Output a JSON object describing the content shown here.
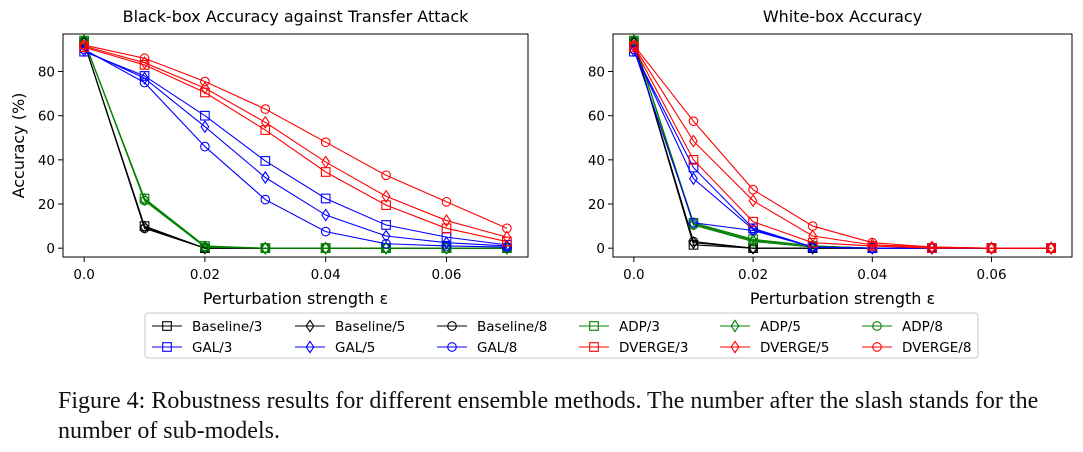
{
  "figure": {
    "caption_label": "Figure 4:",
    "caption_text": "Robustness results for different ensemble methods. The number after the slash stands for the number of sub-models."
  },
  "colors": {
    "Baseline": "#000000",
    "GAL": "#0000ff",
    "ADP": "#008000",
    "DVERGE": "#ff0000"
  },
  "legend": {
    "placement": "bottom-center",
    "entries": [
      {
        "name": "Baseline/3",
        "family": "Baseline",
        "marker": "square"
      },
      {
        "name": "Baseline/5",
        "family": "Baseline",
        "marker": "diamond"
      },
      {
        "name": "Baseline/8",
        "family": "Baseline",
        "marker": "circle"
      },
      {
        "name": "ADP/3",
        "family": "ADP",
        "marker": "square"
      },
      {
        "name": "ADP/5",
        "family": "ADP",
        "marker": "diamond"
      },
      {
        "name": "ADP/8",
        "family": "ADP",
        "marker": "circle"
      },
      {
        "name": "GAL/3",
        "family": "GAL",
        "marker": "square"
      },
      {
        "name": "GAL/5",
        "family": "GAL",
        "marker": "diamond"
      },
      {
        "name": "GAL/8",
        "family": "GAL",
        "marker": "circle"
      },
      {
        "name": "DVERGE/3",
        "family": "DVERGE",
        "marker": "square"
      },
      {
        "name": "DVERGE/5",
        "family": "DVERGE",
        "marker": "diamond"
      },
      {
        "name": "DVERGE/8",
        "family": "DVERGE",
        "marker": "circle"
      }
    ]
  },
  "chart_data": [
    {
      "type": "line",
      "title": "Black-box Accuracy against Transfer Attack",
      "xlabel": "Perturbation strength ε",
      "ylabel": "Accuracy (%)",
      "xlim": [
        -0.0035,
        0.0735
      ],
      "ylim": [
        -4,
        97
      ],
      "xticks": [
        0.0,
        0.02,
        0.04,
        0.06
      ],
      "xtick_labels": [
        "0.0",
        "0.02",
        "0.04",
        "0.06"
      ],
      "yticks": [
        0,
        20,
        40,
        60,
        80
      ],
      "grid": false,
      "x": [
        0.0,
        0.01,
        0.02,
        0.03,
        0.04,
        0.05,
        0.06,
        0.07
      ],
      "series": [
        {
          "name": "Baseline/3",
          "family": "Baseline",
          "marker": "square",
          "values": [
            93,
            10,
            0,
            0,
            0,
            0,
            0,
            0
          ]
        },
        {
          "name": "Baseline/5",
          "family": "Baseline",
          "marker": "diamond",
          "values": [
            93,
            9.5,
            0,
            0,
            0,
            0,
            0,
            0
          ]
        },
        {
          "name": "Baseline/8",
          "family": "Baseline",
          "marker": "circle",
          "values": [
            93,
            9,
            0,
            0,
            0,
            0,
            0,
            0
          ]
        },
        {
          "name": "ADP/3",
          "family": "ADP",
          "marker": "square",
          "values": [
            94,
            22.5,
            1,
            0,
            0,
            0,
            0,
            0
          ]
        },
        {
          "name": "ADP/5",
          "family": "ADP",
          "marker": "diamond",
          "values": [
            94,
            22,
            0.5,
            0,
            0,
            0,
            0,
            0
          ]
        },
        {
          "name": "ADP/8",
          "family": "ADP",
          "marker": "circle",
          "values": [
            94,
            21.5,
            0.5,
            0,
            0,
            0,
            0,
            0
          ]
        },
        {
          "name": "GAL/3",
          "family": "GAL",
          "marker": "square",
          "values": [
            89,
            78,
            60,
            39.5,
            22.5,
            10.5,
            5,
            1.5
          ]
        },
        {
          "name": "GAL/5",
          "family": "GAL",
          "marker": "diamond",
          "values": [
            89.5,
            77,
            55,
            32,
            15,
            5.5,
            2.5,
            1
          ]
        },
        {
          "name": "GAL/8",
          "family": "GAL",
          "marker": "circle",
          "values": [
            90,
            75,
            46,
            22,
            7.5,
            2,
            1,
            0.5
          ]
        },
        {
          "name": "DVERGE/3",
          "family": "DVERGE",
          "marker": "square",
          "values": [
            91,
            83,
            70.5,
            53.5,
            34.5,
            19.5,
            9,
            3
          ]
        },
        {
          "name": "DVERGE/5",
          "family": "DVERGE",
          "marker": "diamond",
          "values": [
            91.5,
            84,
            72.5,
            57,
            39,
            23.5,
            12.5,
            5
          ]
        },
        {
          "name": "DVERGE/8",
          "family": "DVERGE",
          "marker": "circle",
          "values": [
            92,
            86,
            75.5,
            63,
            48,
            33,
            21,
            9
          ]
        }
      ]
    },
    {
      "type": "line",
      "title": "White-box Accuracy",
      "xlabel": "Perturbation strength ε",
      "ylabel": "",
      "xlim": [
        -0.0035,
        0.0735
      ],
      "ylim": [
        -4,
        97
      ],
      "xticks": [
        0.0,
        0.02,
        0.04,
        0.06
      ],
      "xtick_labels": [
        "0.0",
        "0.02",
        "0.04",
        "0.06"
      ],
      "yticks": [
        0,
        20,
        40,
        60,
        80
      ],
      "grid": false,
      "x": [
        0.0,
        0.01,
        0.02,
        0.03,
        0.04,
        0.05,
        0.06,
        0.07
      ],
      "series": [
        {
          "name": "Baseline/3",
          "family": "Baseline",
          "marker": "square",
          "values": [
            93,
            1.5,
            0,
            0,
            0,
            0,
            0,
            0
          ]
        },
        {
          "name": "Baseline/5",
          "family": "Baseline",
          "marker": "diamond",
          "values": [
            93,
            2.5,
            0,
            0,
            0,
            0,
            0,
            0
          ]
        },
        {
          "name": "Baseline/8",
          "family": "Baseline",
          "marker": "circle",
          "values": [
            93,
            3,
            0,
            0,
            0,
            0,
            0,
            0
          ]
        },
        {
          "name": "ADP/3",
          "family": "ADP",
          "marker": "square",
          "values": [
            94,
            11.5,
            4,
            1,
            0,
            0,
            0,
            0
          ]
        },
        {
          "name": "ADP/5",
          "family": "ADP",
          "marker": "diamond",
          "values": [
            94,
            11,
            3.5,
            1,
            0,
            0,
            0,
            0
          ]
        },
        {
          "name": "ADP/8",
          "family": "ADP",
          "marker": "circle",
          "values": [
            94,
            10.5,
            3,
            0.5,
            0,
            0,
            0,
            0
          ]
        },
        {
          "name": "GAL/3",
          "family": "GAL",
          "marker": "square",
          "values": [
            89,
            36.5,
            9,
            0.5,
            0,
            0,
            0,
            0
          ]
        },
        {
          "name": "GAL/5",
          "family": "GAL",
          "marker": "diamond",
          "values": [
            89.5,
            31.5,
            8.5,
            0.5,
            0,
            0,
            0,
            0
          ]
        },
        {
          "name": "GAL/8",
          "family": "GAL",
          "marker": "circle",
          "values": [
            90,
            11.5,
            8,
            0.5,
            0,
            0,
            0,
            0
          ]
        },
        {
          "name": "DVERGE/3",
          "family": "DVERGE",
          "marker": "square",
          "values": [
            91,
            40,
            12,
            2.5,
            1,
            0,
            0,
            0
          ]
        },
        {
          "name": "DVERGE/5",
          "family": "DVERGE",
          "marker": "diamond",
          "values": [
            91.5,
            48.5,
            21.5,
            5.5,
            1.5,
            0.5,
            0,
            0
          ]
        },
        {
          "name": "DVERGE/8",
          "family": "DVERGE",
          "marker": "circle",
          "values": [
            92,
            57.5,
            26.5,
            10,
            2.5,
            0.5,
            0,
            0
          ]
        }
      ]
    }
  ]
}
